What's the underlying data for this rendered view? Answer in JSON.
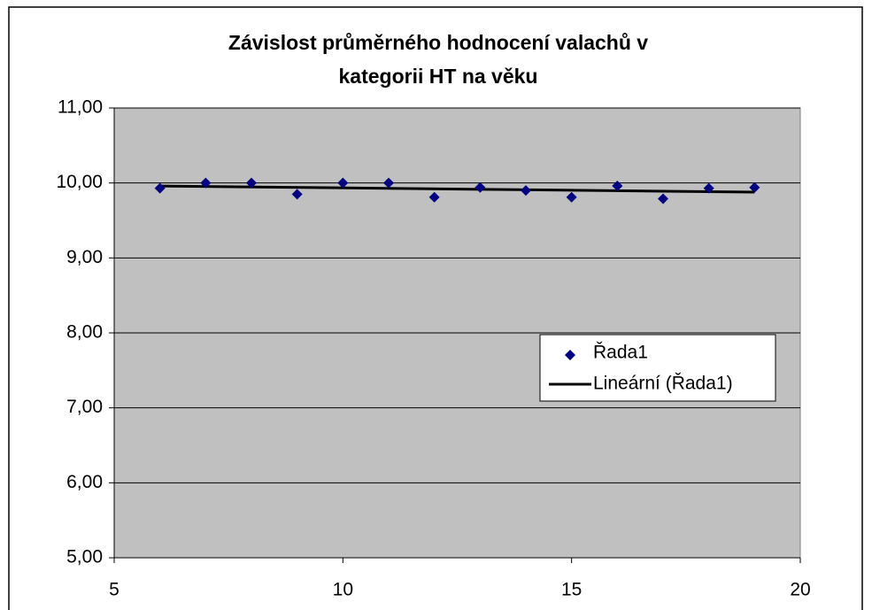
{
  "chart_data": {
    "type": "scatter",
    "title": [
      "Závislost průměrného hodnocení valachů v",
      "kategorii HT na věku"
    ],
    "series": [
      {
        "name": "Řada1",
        "color": "#000080",
        "x": [
          6,
          7,
          8,
          9,
          10,
          11,
          12,
          13,
          14,
          15,
          16,
          17,
          18,
          19
        ],
        "values": [
          9.93,
          10.0,
          10.0,
          9.85,
          10.0,
          10.0,
          9.81,
          9.94,
          9.9,
          9.81,
          9.96,
          9.79,
          9.93,
          9.94
        ]
      }
    ],
    "trendline": {
      "name": "Lineární (Řada1)",
      "color": "#000000"
    },
    "xlim": [
      5,
      20
    ],
    "xticks": [
      5,
      10,
      15,
      20
    ],
    "ylim": [
      5,
      11
    ],
    "yticks": [
      {
        "value": 5,
        "label": "5,00"
      },
      {
        "value": 6,
        "label": "6,00"
      },
      {
        "value": 7,
        "label": "7,00"
      },
      {
        "value": 8,
        "label": "8,00"
      },
      {
        "value": 9,
        "label": "9,00"
      },
      {
        "value": 10,
        "label": "10,00"
      },
      {
        "value": 11,
        "label": "11,00"
      }
    ],
    "grid": true,
    "legend": "right"
  }
}
